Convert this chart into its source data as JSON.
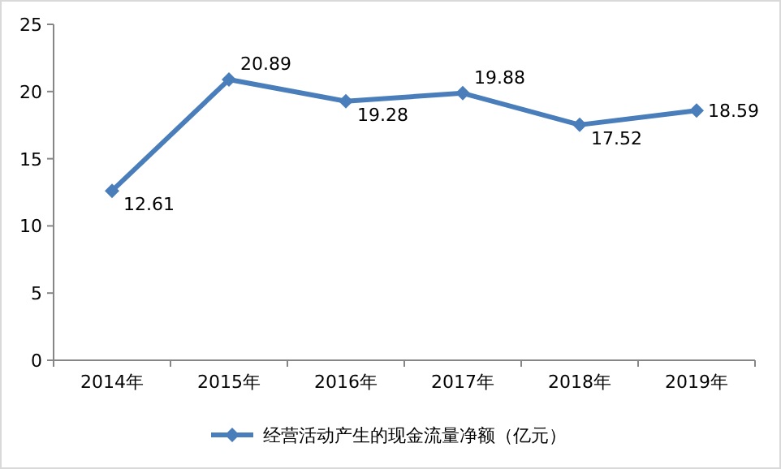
{
  "chart_data": {
    "type": "line",
    "categories": [
      "2014年",
      "2015年",
      "2016年",
      "2017年",
      "2018年",
      "2019年"
    ],
    "series": [
      {
        "name": "经营活动产生的现金流量净额（亿元）",
        "color": "#4a7ebb",
        "values": [
          12.61,
          20.89,
          19.28,
          19.88,
          17.52,
          18.59
        ]
      }
    ],
    "ylim": [
      0,
      25
    ],
    "yticks": [
      0,
      5,
      10,
      15,
      20,
      25
    ],
    "data_labels": true,
    "marker": "diamond",
    "legend": "bottom",
    "grid": false
  }
}
